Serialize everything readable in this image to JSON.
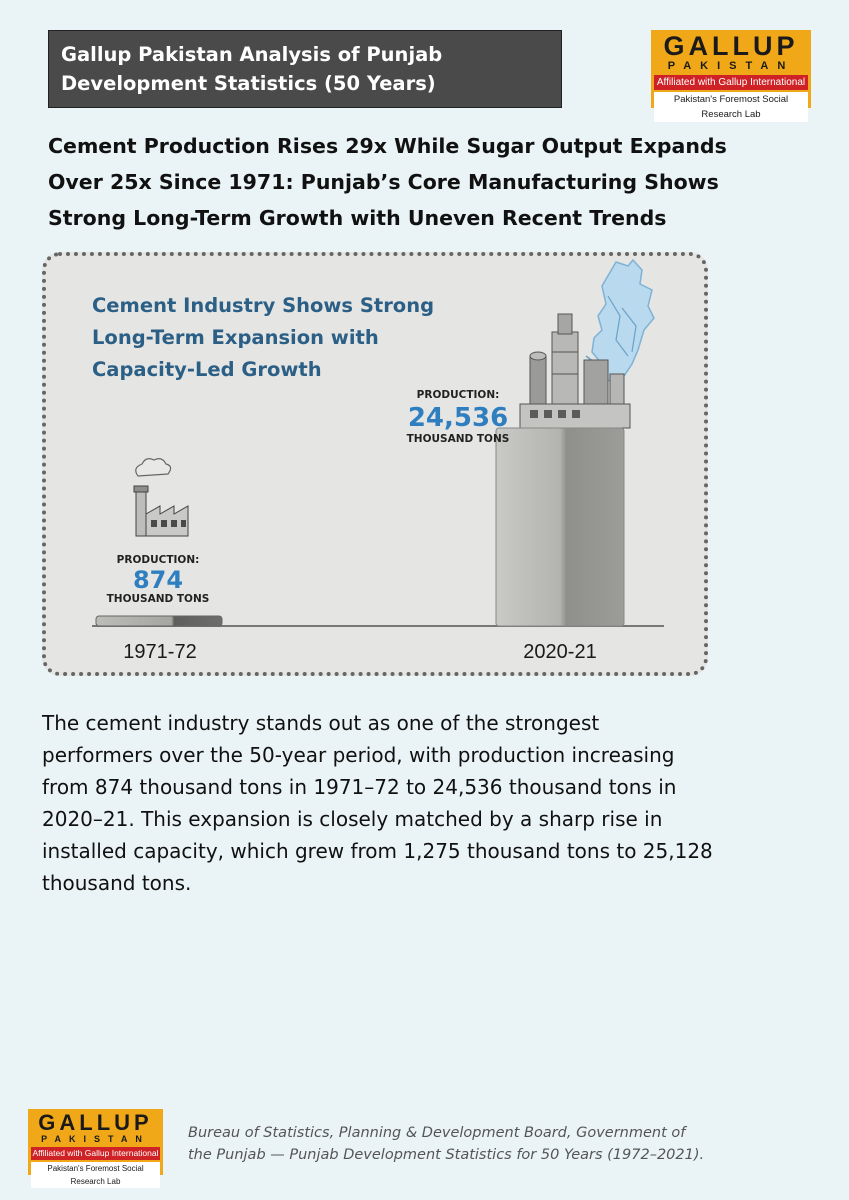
{
  "header": {
    "title_lines": [
      "Gallup Pakistan Analysis of Punjab",
      "Development Statistics (50 Years)"
    ]
  },
  "logo": {
    "brand": "GALLUP",
    "country": "PAKISTAN",
    "affiliation": "Affiliated with Gallup International",
    "tagline": "Pakistan's Foremost Social Research Lab",
    "colors": {
      "background": "#f0a818",
      "band": "#cf2226"
    }
  },
  "headline_lines": [
    "Cement Production Rises 29x While Sugar Output Expands",
    "Over 25x Since 1971: Punjab’s Core Manufacturing Shows",
    "Strong Long-Term Growth with Uneven Recent Trends"
  ],
  "chart_data": {
    "type": "bar",
    "title_lines": [
      "Cement Industry Shows Strong",
      "Long-Term Expansion with",
      "Capacity-Led Growth"
    ],
    "categories": [
      "1971-72",
      "2020-21"
    ],
    "values": [
      874,
      24536
    ],
    "value_labels": [
      "874",
      "24,536"
    ],
    "label_prefix": "PRODUCTION:",
    "label_unit": "THOUSAND TONS",
    "colors": {
      "title": "#2b5f86",
      "value": "#2f7fc0",
      "bar": "#a9a9a6"
    },
    "icons": [
      "small-factory-icon",
      "cement-plant-icon",
      "punjab-map-icon"
    ]
  },
  "body_lines": [
    "The cement industry stands out as one of the strongest",
    "performers over the 50-year period, with production increasing",
    "from 874 thousand tons in 1971–72 to 24,536 thousand tons in",
    "2020–21. This expansion is closely matched by a sharp rise in",
    "installed capacity, which grew from 1,275 thousand tons to 25,128",
    "thousand tons."
  ],
  "source_lines": [
    "Bureau of Statistics, Planning & Development Board, Government of",
    "the Punjab — Punjab Development Statistics for 50 Years (1972–2021)."
  ]
}
